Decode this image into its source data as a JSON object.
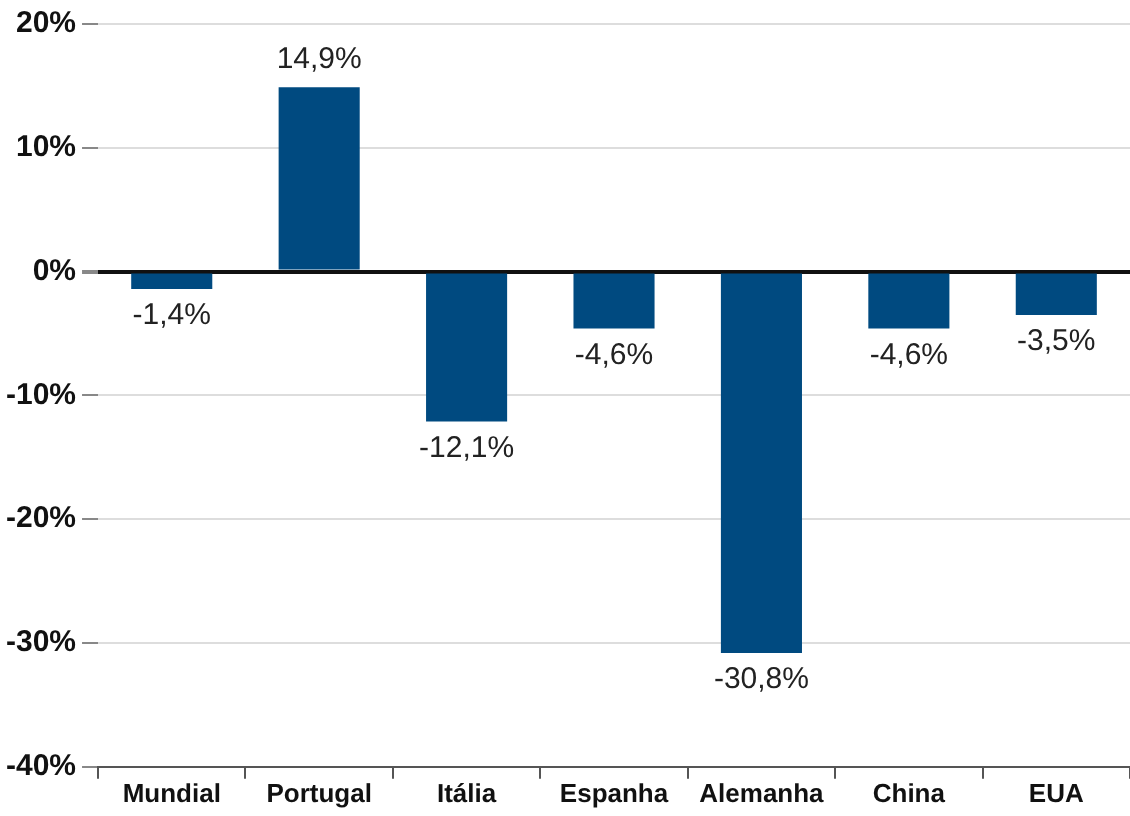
{
  "chart_data": {
    "type": "bar",
    "categories": [
      "Mundial",
      "Portugal",
      "Itália",
      "Espanha",
      "Alemanha",
      "China",
      "EUA"
    ],
    "values": [
      -1.4,
      14.9,
      -12.1,
      -4.6,
      -30.8,
      -4.6,
      -3.5
    ],
    "value_labels": [
      "-1,4%",
      "14,9%",
      "-12,1%",
      "-4,6%",
      "-30,8%",
      "-4,6%",
      "-3,5%"
    ],
    "color": "#004a80",
    "ylim": [
      -40,
      20
    ],
    "yticks": [
      {
        "value": 20,
        "label": "20%"
      },
      {
        "value": 10,
        "label": "10%"
      },
      {
        "value": 0,
        "label": "0%"
      },
      {
        "value": -10,
        "label": "-10%"
      },
      {
        "value": -20,
        "label": "-20%"
      },
      {
        "value": -30,
        "label": "-30%"
      },
      {
        "value": -40,
        "label": "-40%"
      }
    ],
    "grid": "y",
    "legend": false
  }
}
